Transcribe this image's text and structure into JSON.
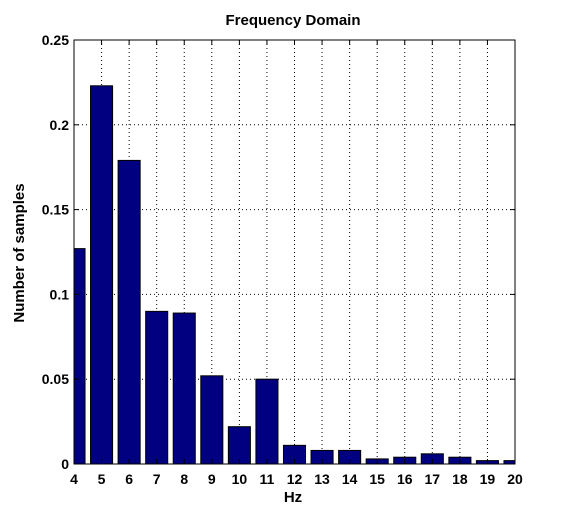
{
  "chart_data": {
    "type": "bar",
    "title": "Frequency Domain",
    "xlabel": "Hz",
    "ylabel": "Number of samples",
    "categories": [
      4,
      5,
      6,
      7,
      8,
      9,
      10,
      11,
      12,
      13,
      14,
      15,
      16,
      17,
      18,
      19,
      20
    ],
    "values": [
      0.127,
      0.223,
      0.179,
      0.09,
      0.089,
      0.052,
      0.022,
      0.05,
      0.011,
      0.008,
      0.008,
      0.003,
      0.004,
      0.006,
      0.004,
      0.002,
      0.002
    ],
    "xlim": [
      4,
      20
    ],
    "ylim": [
      0,
      0.25
    ],
    "xticks": [
      "4",
      "5",
      "6",
      "7",
      "8",
      "9",
      "10",
      "11",
      "12",
      "13",
      "14",
      "15",
      "16",
      "17",
      "18",
      "19",
      "20"
    ],
    "yticks": [
      {
        "value": 0,
        "label": "0"
      },
      {
        "value": 0.05,
        "label": "0.05"
      },
      {
        "value": 0.1,
        "label": "0.1"
      },
      {
        "value": 0.15,
        "label": "0.15"
      },
      {
        "value": 0.2,
        "label": "0.2"
      },
      {
        "value": 0.25,
        "label": "0.25"
      }
    ],
    "grid": true,
    "bar_color": "#000080",
    "bar_edge_color": "#000000"
  }
}
